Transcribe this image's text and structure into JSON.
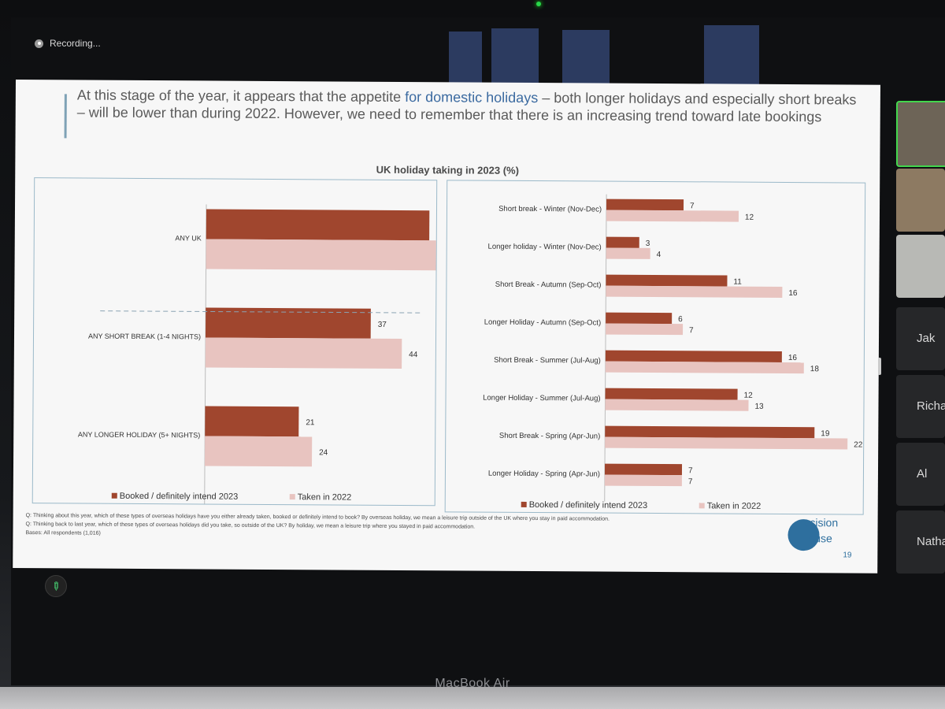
{
  "recording": {
    "label": "Recording..."
  },
  "slide": {
    "headline_pre": "At this stage of the year, it appears that the appetite ",
    "headline_highlight": "for domestic holidays",
    "headline_post": " – both longer holidays and especially short breaks – will be lower than during 2022.  However, we need to remember that there is an increasing trend toward late bookings",
    "chart_title": "UK holiday taking in 2023 (%)",
    "footnotes": [
      "Q:  Thinking about this year, which of these types of overseas holidays have you either already taken, booked or definitely intend to book?  By overseas holiday, we mean a leisure trip outside of the UK where you stay in paid accommodation.",
      "Q:  Thinking back to last year, which of these types of overseas holidays did you take, so outside of the UK?  By holiday, we mean a leisure trip where you stayed in paid accommodation.",
      "Bases:  All respondents (1,016)"
    ],
    "logo_line1": "ecision",
    "logo_line2": "ouse",
    "page_number": "19"
  },
  "colors": {
    "booked": "#a0462e",
    "taken": "#e8c4c0"
  },
  "chart_data": [
    {
      "type": "bar",
      "orientation": "horizontal",
      "categories": [
        "ANY UK",
        "ANY SHORT BREAK (1-4 NIGHTS)",
        "ANY LONGER HOLIDAY (5+ NIGHTS)"
      ],
      "series": [
        {
          "name": "Booked / definitely intend 2023",
          "values": [
            50,
            37,
            21
          ]
        },
        {
          "name": "Taken in 2022",
          "values": [
            57,
            44,
            24
          ]
        }
      ],
      "xlim": [
        0,
        60
      ],
      "legend": [
        "Booked / definitely intend 2023",
        "Taken in 2022"
      ]
    },
    {
      "type": "bar",
      "orientation": "horizontal",
      "categories": [
        "Short break - Winter (Nov-Dec)",
        "Longer holiday - Winter (Nov-Dec)",
        "Short Break - Autumn (Sep-Oct)",
        "Longer Holiday - Autumn (Sep-Oct)",
        "Short Break - Summer (Jul-Aug)",
        "Longer Holiday - Summer (Jul-Aug)",
        "Short Break - Spring (Apr-Jun)",
        "Longer Holiday - Spring (Apr-Jun)"
      ],
      "series": [
        {
          "name": "Booked / definitely intend 2023",
          "values": [
            7,
            3,
            11,
            6,
            16,
            12,
            19,
            7
          ]
        },
        {
          "name": "Taken in 2022",
          "values": [
            12,
            4,
            16,
            7,
            18,
            13,
            22,
            7
          ]
        }
      ],
      "xlim": [
        0,
        25
      ],
      "legend": [
        "Booked / definitely intend 2023",
        "Taken in  2022"
      ]
    }
  ],
  "participants": [
    "Jak",
    "Richar",
    "Al",
    "Nathar"
  ],
  "device_brand": "MacBook Air"
}
